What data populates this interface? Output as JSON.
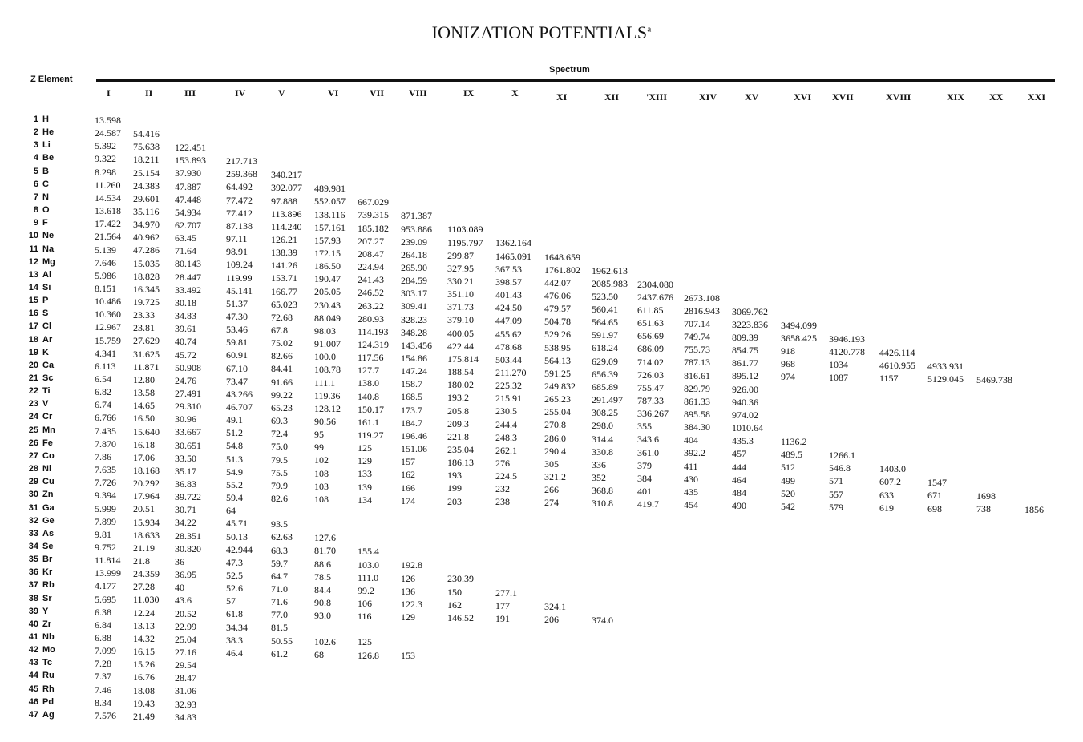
{
  "document": {
    "title": "IONIZATION POTENTIALS",
    "title_note": "a",
    "row_header": "Z  Element",
    "group_header": "Spectrum"
  },
  "columns": [
    "I",
    "II",
    "III",
    "IV",
    "V",
    "VI",
    "VII",
    "VIII",
    "IX",
    "X",
    "XI",
    "XII",
    "'XIII",
    "XIV",
    "XV",
    "XVI",
    "XVII",
    "XVIII",
    "XIX",
    "XX",
    "XXI"
  ],
  "rows": [
    {
      "z": "1",
      "el": "H",
      "v": [
        "13.598"
      ]
    },
    {
      "z": "2",
      "el": "He",
      "v": [
        "24.587",
        "54.416"
      ]
    },
    {
      "z": "3",
      "el": "Li",
      "v": [
        "5.392",
        "75.638",
        "122.451"
      ]
    },
    {
      "z": "4",
      "el": "Be",
      "v": [
        "9.322",
        "18.211",
        "153.893",
        "217.713"
      ]
    },
    {
      "z": "5",
      "el": "B",
      "v": [
        "8.298",
        "25.154",
        "37.930",
        "259.368",
        "340.217"
      ]
    },
    {
      "z": "6",
      "el": "C",
      "v": [
        "11.260",
        "24.383",
        "47.887",
        "64.492",
        "392.077",
        "489.981"
      ]
    },
    {
      "z": "7",
      "el": "N",
      "v": [
        "14.534",
        "29.601",
        "47.448",
        "77.472",
        "97.888",
        "552.057",
        "667.029"
      ]
    },
    {
      "z": "8",
      "el": "O",
      "v": [
        "13.618",
        "35.116",
        "54.934",
        "77.412",
        "113.896",
        "138.116",
        "739.315",
        "871.387"
      ]
    },
    {
      "z": "9",
      "el": "F",
      "v": [
        "17.422",
        "34.970",
        "62.707",
        "87.138",
        "114.240",
        "157.161",
        "185.182",
        "953.886",
        "1103.089"
      ]
    },
    {
      "z": "10",
      "el": "Ne",
      "v": [
        "21.564",
        "40.962",
        "63.45",
        "97.11",
        "126.21",
        "157.93",
        "207.27",
        "239.09",
        "1195.797",
        "1362.164"
      ]
    },
    {
      "z": "11",
      "el": "Na",
      "v": [
        "5.139",
        "47.286",
        "71.64",
        "98.91",
        "138.39",
        "172.15",
        "208.47",
        "264.18",
        "299.87",
        "1465.091",
        "1648.659"
      ]
    },
    {
      "z": "12",
      "el": "Mg",
      "v": [
        "7.646",
        "15.035",
        "80.143",
        "109.24",
        "141.26",
        "186.50",
        "224.94",
        "265.90",
        "327.95",
        "367.53",
        "1761.802",
        "1962.613"
      ]
    },
    {
      "z": "13",
      "el": "Al",
      "v": [
        "5.986",
        "18.828",
        "28.447",
        "119.99",
        "153.71",
        "190.47",
        "241.43",
        "284.59",
        "330.21",
        "398.57",
        "442.07",
        "2085.983",
        "2304.080"
      ]
    },
    {
      "z": "14",
      "el": "Si",
      "v": [
        "8.151",
        "16.345",
        "33.492",
        "45.141",
        "166.77",
        "205.05",
        "246.52",
        "303.17",
        "351.10",
        "401.43",
        "476.06",
        "523.50",
        "2437.676",
        "2673.108"
      ]
    },
    {
      "z": "15",
      "el": "P",
      "v": [
        "10.486",
        "19.725",
        "30.18",
        "51.37",
        "65.023",
        "230.43",
        "263.22",
        "309.41",
        "371.73",
        "424.50",
        "479.57",
        "560.41",
        "611.85",
        "2816.943",
        "3069.762"
      ]
    },
    {
      "z": "16",
      "el": "S",
      "v": [
        "10.360",
        "23.33",
        "34.83",
        "47.30",
        "72.68",
        "88.049",
        "280.93",
        "328.23",
        "379.10",
        "447.09",
        "504.78",
        "564.65",
        "651.63",
        "707.14",
        "3223.836",
        "3494.099"
      ]
    },
    {
      "z": "17",
      "el": "Cl",
      "v": [
        "12.967",
        "23.81",
        "39.61",
        "53.46",
        "67.8",
        "98.03",
        "114.193",
        "348.28",
        "400.05",
        "455.62",
        "529.26",
        "591.97",
        "656.69",
        "749.74",
        "809.39",
        "3658.425",
        "3946.193"
      ]
    },
    {
      "z": "18",
      "el": "Ar",
      "v": [
        "15.759",
        "27.629",
        "40.74",
        "59.81",
        "75.02",
        "91.007",
        "124.319",
        "143.456",
        "422.44",
        "478.68",
        "538.95",
        "618.24",
        "686.09",
        "755.73",
        "854.75",
        "918",
        "4120.778",
        "4426.114"
      ]
    },
    {
      "z": "19",
      "el": "K",
      "v": [
        "4.341",
        "31.625",
        "45.72",
        "60.91",
        "82.66",
        "100.0",
        "117.56",
        "154.86",
        "175.814",
        "503.44",
        "564.13",
        "629.09",
        "714.02",
        "787.13",
        "861.77",
        "968",
        "1034",
        "4610.955",
        "4933.931"
      ]
    },
    {
      "z": "20",
      "el": "Ca",
      "v": [
        "6.113",
        "11.871",
        "50.908",
        "67.10",
        "84.41",
        "108.78",
        "127.7",
        "147.24",
        "188.54",
        "211.270",
        "591.25",
        "656.39",
        "726.03",
        "816.61",
        "895.12",
        "974",
        "1087",
        "1157",
        "5129.045",
        "5469.738"
      ]
    },
    {
      "z": "21",
      "el": "Sc",
      "v": [
        "6.54",
        "12.80",
        "24.76",
        "73.47",
        "91.66",
        "111.1",
        "138.0",
        "158.7",
        "180.02",
        "225.32",
        "249.832",
        "685.89",
        "755.47",
        "829.79",
        "926.00"
      ]
    },
    {
      "z": "22",
      "el": "Ti",
      "v": [
        "6.82",
        "13.58",
        "27.491",
        "43.266",
        "99.22",
        "119.36",
        "140.8",
        "168.5",
        "193.2",
        "215.91",
        "265.23",
        "291.497",
        "787.33",
        "861.33",
        "940.36"
      ]
    },
    {
      "z": "23",
      "el": "V",
      "v": [
        "6.74",
        "14.65",
        "29.310",
        "46.707",
        "65.23",
        "128.12",
        "150.17",
        "173.7",
        "205.8",
        "230.5",
        "255.04",
        "308.25",
        "336.267",
        "895.58",
        "974.02"
      ]
    },
    {
      "z": "24",
      "el": "Cr",
      "v": [
        "6.766",
        "16.50",
        "30.96",
        "49.1",
        "69.3",
        "90.56",
        "161.1",
        "184.7",
        "209.3",
        "244.4",
        "270.8",
        "298.0",
        "355",
        "384.30",
        "1010.64"
      ]
    },
    {
      "z": "25",
      "el": "Mn",
      "v": [
        "7.435",
        "15.640",
        "33.667",
        "51.2",
        "72.4",
        "95",
        "119.27",
        "196.46",
        "221.8",
        "248.3",
        "286.0",
        "314.4",
        "343.6",
        "404",
        "435.3",
        "1136.2"
      ]
    },
    {
      "z": "26",
      "el": "Fe",
      "v": [
        "7.870",
        "16.18",
        "30.651",
        "54.8",
        "75.0",
        "99",
        "125",
        "151.06",
        "235.04",
        "262.1",
        "290.4",
        "330.8",
        "361.0",
        "392.2",
        "457",
        "489.5",
        "1266.1"
      ]
    },
    {
      "z": "27",
      "el": "Co",
      "v": [
        "7.86",
        "17.06",
        "33.50",
        "51.3",
        "79.5",
        "102",
        "129",
        "157",
        "186.13",
        "276",
        "305",
        "336",
        "379",
        "411",
        "444",
        "512",
        "546.8",
        "1403.0"
      ]
    },
    {
      "z": "28",
      "el": "Ni",
      "v": [
        "7.635",
        "18.168",
        "35.17",
        "54.9",
        "75.5",
        "108",
        "133",
        "162",
        "193",
        "224.5",
        "321.2",
        "352",
        "384",
        "430",
        "464",
        "499",
        "571",
        "607.2",
        "1547"
      ]
    },
    {
      "z": "29",
      "el": "Cu",
      "v": [
        "7.726",
        "20.292",
        "36.83",
        "55.2",
        "79.9",
        "103",
        "139",
        "166",
        "199",
        "232",
        "266",
        "368.8",
        "401",
        "435",
        "484",
        "520",
        "557",
        "633",
        "671",
        "1698"
      ]
    },
    {
      "z": "30",
      "el": "Zn",
      "v": [
        "9.394",
        "17.964",
        "39.722",
        "59.4",
        "82.6",
        "108",
        "134",
        "174",
        "203",
        "238",
        "274",
        "310.8",
        "419.7",
        "454",
        "490",
        "542",
        "579",
        "619",
        "698",
        "738",
        "1856"
      ]
    },
    {
      "z": "31",
      "el": "Ga",
      "v": [
        "5.999",
        "20.51",
        "30.71",
        "64"
      ]
    },
    {
      "z": "32",
      "el": "Ge",
      "v": [
        "7.899",
        "15.934",
        "34.22",
        "45.71",
        "93.5"
      ]
    },
    {
      "z": "33",
      "el": "As",
      "v": [
        "9.81",
        "18.633",
        "28.351",
        "50.13",
        "62.63",
        "127.6"
      ]
    },
    {
      "z": "34",
      "el": "Se",
      "v": [
        "9.752",
        "21.19",
        "30.820",
        "42.944",
        "68.3",
        "81.70",
        "155.4"
      ]
    },
    {
      "z": "35",
      "el": "Br",
      "v": [
        "11.814",
        "21.8",
        "36",
        "47.3",
        "59.7",
        "88.6",
        "103.0",
        "192.8"
      ]
    },
    {
      "z": "36",
      "el": "Kr",
      "v": [
        "13.999",
        "24.359",
        "36.95",
        "52.5",
        "64.7",
        "78.5",
        "111.0",
        "126",
        "230.39"
      ]
    },
    {
      "z": "37",
      "el": "Rb",
      "v": [
        "4.177",
        "27.28",
        "40",
        "52.6",
        "71.0",
        "84.4",
        "99.2",
        "136",
        "150",
        "277.1"
      ]
    },
    {
      "z": "38",
      "el": "Sr",
      "v": [
        "5.695",
        "11.030",
        "43.6",
        "57",
        "71.6",
        "90.8",
        "106",
        "122.3",
        "162",
        "177",
        "324.1"
      ]
    },
    {
      "z": "39",
      "el": "Y",
      "v": [
        "6.38",
        "12.24",
        "20.52",
        "61.8",
        "77.0",
        "93.0",
        "116",
        "129",
        "146.52",
        "191",
        "206",
        "374.0"
      ]
    },
    {
      "z": "40",
      "el": "Zr",
      "v": [
        "6.84",
        "13.13",
        "22.99",
        "34.34",
        "81.5"
      ]
    },
    {
      "z": "41",
      "el": "Nb",
      "v": [
        "6.88",
        "14.32",
        "25.04",
        "38.3",
        "50.55",
        "102.6",
        "125"
      ]
    },
    {
      "z": "42",
      "el": "Mo",
      "v": [
        "7.099",
        "16.15",
        "27.16",
        "46.4",
        "61.2",
        "68",
        "126.8",
        "153"
      ]
    },
    {
      "z": "43",
      "el": "Tc",
      "v": [
        "7.28",
        "15.26",
        "29.54"
      ]
    },
    {
      "z": "44",
      "el": "Ru",
      "v": [
        "7.37",
        "16.76",
        "28.47"
      ]
    },
    {
      "z": "45",
      "el": "Rh",
      "v": [
        "7.46",
        "18.08",
        "31.06"
      ]
    },
    {
      "z": "46",
      "el": "Pd",
      "v": [
        "8.34",
        "19.43",
        "32.93"
      ]
    },
    {
      "z": "47",
      "el": "Ag",
      "v": [
        "7.576",
        "21.49",
        "34.83"
      ]
    }
  ]
}
